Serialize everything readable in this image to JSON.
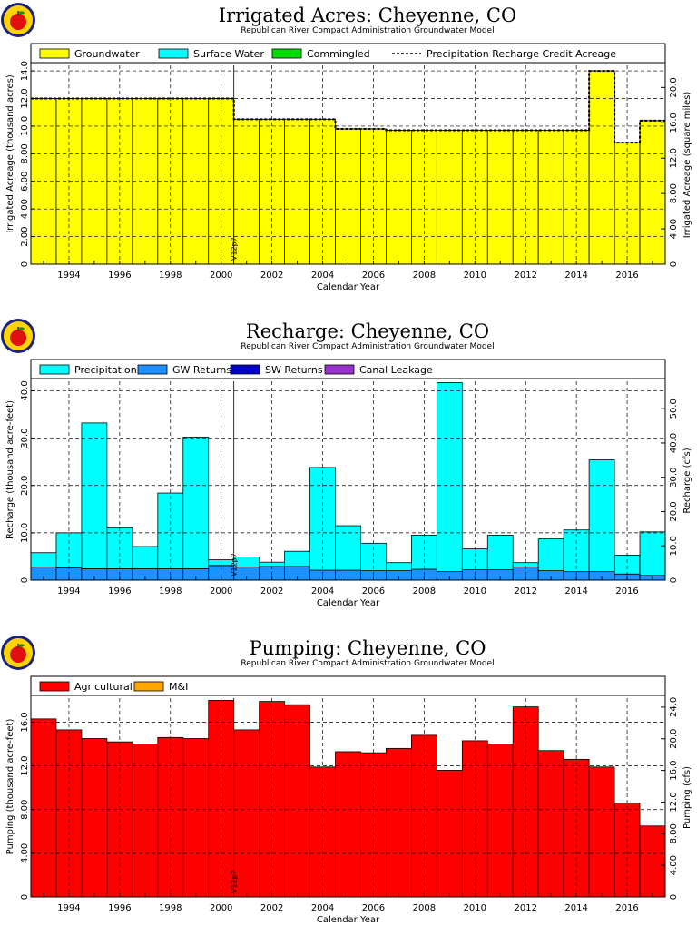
{
  "chart_data": [
    {
      "type": "bar",
      "title": "Irrigated Acres: Cheyenne, CO",
      "subtitle": "Republican River Compact Administration Groundwater Model",
      "xlabel": "Calendar Year",
      "ylabel": "Irrigated Acreage (thousand acres)",
      "ylabel2": "Irrigated Acreage (square miles)",
      "ylim": [
        0,
        14.4
      ],
      "y_ticks": [
        "0",
        "2.00",
        "4.00",
        "6.00",
        "8.00",
        "10.0",
        "12.0",
        "14.0"
      ],
      "y_tick_values": [
        0,
        2,
        4,
        6,
        8,
        10,
        12,
        14
      ],
      "y2_ticks": [
        "0",
        "4.00",
        "8.00",
        "12.0",
        "16.0",
        "20.0"
      ],
      "y2_tick_values": [
        0,
        4,
        8,
        12,
        16,
        20
      ],
      "y2_scale": 1.5625,
      "x_ticks": [
        "1994",
        "1996",
        "1998",
        "2000",
        "2002",
        "2004",
        "2006",
        "2008",
        "2010",
        "2012",
        "2014",
        "2016"
      ],
      "x": [
        1993,
        1994,
        1995,
        1996,
        1997,
        1998,
        1999,
        2000,
        2001,
        2002,
        2003,
        2004,
        2005,
        2006,
        2007,
        2008,
        2009,
        2010,
        2011,
        2012,
        2013,
        2014,
        2015,
        2016,
        2017
      ],
      "legend": [
        "Groundwater",
        "Surface Water",
        "Commingled",
        "Precipitation Recharge Credit Acreage"
      ],
      "series": [
        {
          "name": "Groundwater",
          "color": "#ffff00",
          "values": [
            12.0,
            12.0,
            12.0,
            12.0,
            12.0,
            12.0,
            12.0,
            12.0,
            10.5,
            10.5,
            10.5,
            10.5,
            9.8,
            9.8,
            9.7,
            9.7,
            9.7,
            9.7,
            9.7,
            9.7,
            9.7,
            9.7,
            14.0,
            8.8,
            10.4
          ]
        },
        {
          "name": "Surface Water",
          "color": "#00ffff",
          "values": [
            0,
            0,
            0,
            0,
            0,
            0,
            0,
            0,
            0,
            0,
            0,
            0,
            0,
            0,
            0,
            0,
            0,
            0,
            0,
            0,
            0,
            0,
            0,
            0,
            0
          ]
        },
        {
          "name": "Commingled",
          "color": "#00dd00",
          "values": [
            0,
            0,
            0,
            0,
            0,
            0,
            0,
            0,
            0,
            0,
            0,
            0,
            0,
            0,
            0,
            0,
            0,
            0,
            0,
            0,
            0,
            0,
            0,
            0,
            0
          ]
        }
      ],
      "line": {
        "name": "Precipitation Recharge Credit Acreage",
        "values": [
          12.0,
          12.0,
          12.0,
          12.0,
          12.0,
          12.0,
          12.0,
          12.0,
          10.5,
          10.5,
          10.5,
          10.5,
          9.8,
          9.8,
          9.7,
          9.7,
          9.7,
          9.7,
          9.7,
          9.7,
          9.7,
          9.7,
          14.0,
          8.8,
          10.4
        ]
      },
      "marker": {
        "x": 2000.5,
        "label": "V12p7"
      },
      "grid": true,
      "legend_position": "top"
    },
    {
      "type": "bar",
      "title": "Recharge: Cheyenne, CO",
      "subtitle": "Republican River Compact Administration Groundwater Model",
      "xlabel": "Calendar Year",
      "ylabel": "Recharge (thousand acre-feet)",
      "ylabel2": "Recharge (cfs)",
      "ylim": [
        0,
        42
      ],
      "y_ticks": [
        "0",
        "10.0",
        "20.0",
        "30.0",
        "40.0"
      ],
      "y_tick_values": [
        0,
        10,
        20,
        30,
        40
      ],
      "y2_ticks": [
        "0",
        "10.0",
        "20.0",
        "30.0",
        "40.0",
        "50.0"
      ],
      "y2_tick_values": [
        0,
        10,
        20,
        30,
        40,
        50
      ],
      "y2_scale": 1.381,
      "x_ticks": [
        "1994",
        "1996",
        "1998",
        "2000",
        "2002",
        "2004",
        "2006",
        "2008",
        "2010",
        "2012",
        "2014",
        "2016"
      ],
      "x": [
        1993,
        1994,
        1995,
        1996,
        1997,
        1998,
        1999,
        2000,
        2001,
        2002,
        2003,
        2004,
        2005,
        2006,
        2007,
        2008,
        2009,
        2010,
        2011,
        2012,
        2013,
        2014,
        2015,
        2016,
        2017
      ],
      "legend": [
        "Precipitation",
        "GW Returns",
        "SW Returns",
        "Canal Leakage"
      ],
      "series": [
        {
          "name": "GW Returns",
          "color": "#1e90ff",
          "values": [
            2.8,
            2.6,
            2.4,
            2.4,
            2.4,
            2.4,
            2.4,
            3.1,
            2.8,
            2.9,
            2.9,
            2.1,
            2.1,
            2.0,
            2.0,
            2.3,
            1.8,
            2.2,
            2.2,
            2.8,
            2.0,
            1.8,
            1.8,
            1.3,
            1.0
          ]
        },
        {
          "name": "SW Returns",
          "color": "#0000cd",
          "values": [
            0,
            0,
            0,
            0,
            0,
            0,
            0,
            0,
            0,
            0,
            0,
            0,
            0,
            0,
            0,
            0,
            0,
            0,
            0,
            0,
            0,
            0,
            0,
            0,
            0
          ]
        },
        {
          "name": "Canal Leakage",
          "color": "#9932cc",
          "values": [
            0,
            0,
            0,
            0,
            0,
            0,
            0,
            0,
            0,
            0,
            0,
            0,
            0,
            0,
            0,
            0,
            0,
            0,
            0,
            0,
            0,
            0,
            0,
            0,
            0
          ]
        },
        {
          "name": "Precipitation",
          "color": "#00ffff",
          "values": [
            3.0,
            7.4,
            30.8,
            8.6,
            4.7,
            16.0,
            27.8,
            1.2,
            2.1,
            0.9,
            3.2,
            21.7,
            9.4,
            5.8,
            1.7,
            7.2,
            39.9,
            4.4,
            7.3,
            0.9,
            6.7,
            8.8,
            23.6,
            4.0,
            9.2
          ]
        }
      ],
      "marker": {
        "x": 2000.5,
        "label": "V12p7"
      },
      "grid": true,
      "legend_position": "top"
    },
    {
      "type": "bar",
      "title": "Pumping: Cheyenne, CO",
      "subtitle": "Republican River Compact Administration Groundwater Model",
      "xlabel": "Calendar Year",
      "ylabel": "Pumping (thousand acre-feet)",
      "ylabel2": "Pumping (cfs)",
      "ylim": [
        0,
        18.2
      ],
      "y_ticks": [
        "0",
        "4.00",
        "8.00",
        "12.0",
        "16.0"
      ],
      "y_tick_values": [
        0,
        4,
        8,
        12,
        16
      ],
      "y2_ticks": [
        "0",
        "4.00",
        "8.00",
        "12.0",
        "16.0",
        "20.0",
        "24.0"
      ],
      "y2_tick_values": [
        0,
        4,
        8,
        12,
        16,
        20,
        24
      ],
      "y2_scale": 1.381,
      "x_ticks": [
        "1994",
        "1996",
        "1998",
        "2000",
        "2002",
        "2004",
        "2006",
        "2008",
        "2010",
        "2012",
        "2014",
        "2016"
      ],
      "x": [
        1993,
        1994,
        1995,
        1996,
        1997,
        1998,
        1999,
        2000,
        2001,
        2002,
        2003,
        2004,
        2005,
        2006,
        2007,
        2008,
        2009,
        2010,
        2011,
        2012,
        2013,
        2014,
        2015,
        2016,
        2017
      ],
      "legend": [
        "Agricultural",
        "M&I"
      ],
      "series": [
        {
          "name": "Agricultural",
          "color": "#ff0000",
          "values": [
            16.3,
            15.3,
            14.5,
            14.2,
            14.0,
            14.6,
            14.5,
            18.0,
            15.3,
            17.9,
            17.6,
            11.9,
            13.3,
            13.2,
            13.6,
            14.8,
            11.6,
            14.3,
            14.0,
            17.4,
            13.4,
            12.6,
            11.9,
            8.6,
            6.5
          ]
        },
        {
          "name": "M&I",
          "color": "#ffa500",
          "values": [
            0,
            0,
            0,
            0,
            0,
            0,
            0,
            0,
            0,
            0,
            0,
            0,
            0,
            0,
            0,
            0,
            0,
            0,
            0,
            0,
            0,
            0,
            0,
            0,
            0
          ]
        }
      ],
      "marker": {
        "x": 2000.5,
        "label": "V12p7"
      },
      "grid": true,
      "legend_position": "top"
    }
  ]
}
